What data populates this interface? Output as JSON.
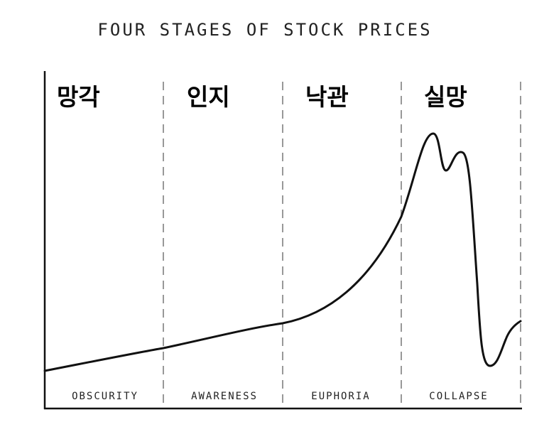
{
  "title": "FOUR STAGES OF STOCK PRICES",
  "stages": [
    {
      "korean": "망각",
      "english": "OBSCURITY"
    },
    {
      "korean": "인지",
      "english": "AWARENESS"
    },
    {
      "korean": "낙관",
      "english": "EUPHORIA"
    },
    {
      "korean": "실망",
      "english": "COLLAPSE"
    }
  ]
}
